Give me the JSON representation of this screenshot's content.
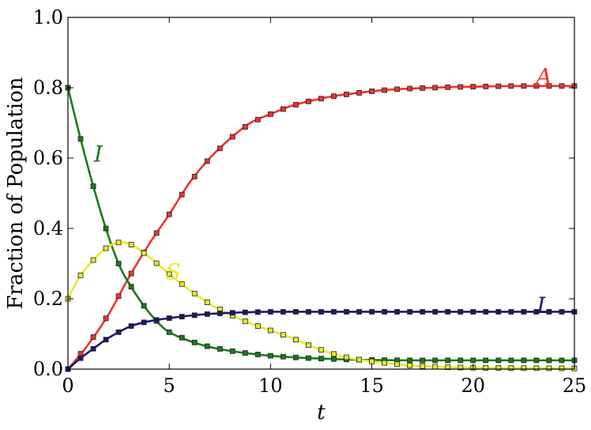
{
  "chart_data": {
    "type": "line",
    "title": "",
    "xlabel": "t",
    "ylabel": "Fraction of Population",
    "xlim": [
      0,
      25
    ],
    "ylim": [
      0,
      1.0
    ],
    "xticks": [
      0,
      5,
      10,
      15,
      20,
      25
    ],
    "xtick_labels": [
      "0",
      "5",
      "10",
      "15",
      "20",
      "25"
    ],
    "yticks": [
      0,
      0.2,
      0.4,
      0.6,
      0.8,
      1.0
    ],
    "ytick_labels": [
      "0.0",
      "0.2",
      "0.4",
      "0.6",
      "0.8",
      "1.0"
    ],
    "grid": false,
    "marker": "square",
    "marker_spacing": 0.625,
    "series": [
      {
        "name": "A",
        "color": "#ee3333",
        "label_at": [
          23.5,
          0.83
        ],
        "points": [
          [
            0,
            0
          ],
          [
            1,
            0.07
          ],
          [
            2,
            0.155
          ],
          [
            3,
            0.26
          ],
          [
            4,
            0.355
          ],
          [
            5,
            0.44
          ],
          [
            6,
            0.53
          ],
          [
            7,
            0.6
          ],
          [
            8,
            0.655
          ],
          [
            9,
            0.7
          ],
          [
            10,
            0.725
          ],
          [
            11,
            0.748
          ],
          [
            12,
            0.763
          ],
          [
            13,
            0.775
          ],
          [
            14,
            0.783
          ],
          [
            15,
            0.79
          ],
          [
            16,
            0.795
          ],
          [
            17,
            0.798
          ],
          [
            18,
            0.8
          ],
          [
            19,
            0.802
          ],
          [
            20,
            0.803
          ],
          [
            21,
            0.804
          ],
          [
            22,
            0.805
          ],
          [
            23,
            0.805
          ],
          [
            24,
            0.805
          ],
          [
            25,
            0.805
          ]
        ]
      },
      {
        "name": "I",
        "color": "#1a7a1a",
        "label_at": [
          1.5,
          0.61
        ],
        "points": [
          [
            0,
            0.8
          ],
          [
            0.6,
            0.66
          ],
          [
            1.25,
            0.52
          ],
          [
            1.9,
            0.395
          ],
          [
            2.5,
            0.3
          ],
          [
            3,
            0.245
          ],
          [
            3.75,
            0.18
          ],
          [
            4.4,
            0.135
          ],
          [
            5,
            0.105
          ],
          [
            6,
            0.08
          ],
          [
            7,
            0.063
          ],
          [
            8,
            0.052
          ],
          [
            9,
            0.044
          ],
          [
            10,
            0.038
          ],
          [
            11,
            0.034
          ],
          [
            12,
            0.031
          ],
          [
            13,
            0.029
          ],
          [
            14,
            0.027
          ],
          [
            15,
            0.026
          ],
          [
            17,
            0.025
          ],
          [
            20,
            0.025
          ],
          [
            25,
            0.025
          ]
        ]
      },
      {
        "name": "S",
        "color": "#e8e830",
        "label_at": [
          5.2,
          0.275
        ],
        "points": [
          [
            0,
            0.2
          ],
          [
            0.6,
            0.265
          ],
          [
            1.25,
            0.31
          ],
          [
            1.9,
            0.345
          ],
          [
            2.5,
            0.36
          ],
          [
            3.1,
            0.355
          ],
          [
            3.75,
            0.33
          ],
          [
            4.4,
            0.3
          ],
          [
            5,
            0.27
          ],
          [
            6,
            0.225
          ],
          [
            7,
            0.185
          ],
          [
            7.5,
            0.17
          ],
          [
            8,
            0.155
          ],
          [
            9,
            0.13
          ],
          [
            10,
            0.11
          ],
          [
            11,
            0.09
          ],
          [
            12,
            0.065
          ],
          [
            13,
            0.045
          ],
          [
            14,
            0.03
          ],
          [
            15,
            0.022
          ],
          [
            16,
            0.015
          ],
          [
            17,
            0.01
          ],
          [
            18,
            0.007
          ],
          [
            19,
            0.005
          ],
          [
            20,
            0.004
          ],
          [
            22,
            0.003
          ],
          [
            25,
            0.002
          ]
        ]
      },
      {
        "name": "L",
        "color": "#1a1a66",
        "label_at": [
          23.5,
          0.18
        ],
        "points": [
          [
            0,
            0
          ],
          [
            0.6,
            0.03
          ],
          [
            1.25,
            0.058
          ],
          [
            1.9,
            0.085
          ],
          [
            2.5,
            0.105
          ],
          [
            3.1,
            0.122
          ],
          [
            3.75,
            0.133
          ],
          [
            4.4,
            0.14
          ],
          [
            5,
            0.145
          ],
          [
            6,
            0.152
          ],
          [
            7,
            0.157
          ],
          [
            8,
            0.16
          ],
          [
            9,
            0.162
          ],
          [
            10,
            0.163
          ],
          [
            12,
            0.163
          ],
          [
            15,
            0.163
          ],
          [
            20,
            0.163
          ],
          [
            25,
            0.163
          ]
        ]
      }
    ]
  }
}
